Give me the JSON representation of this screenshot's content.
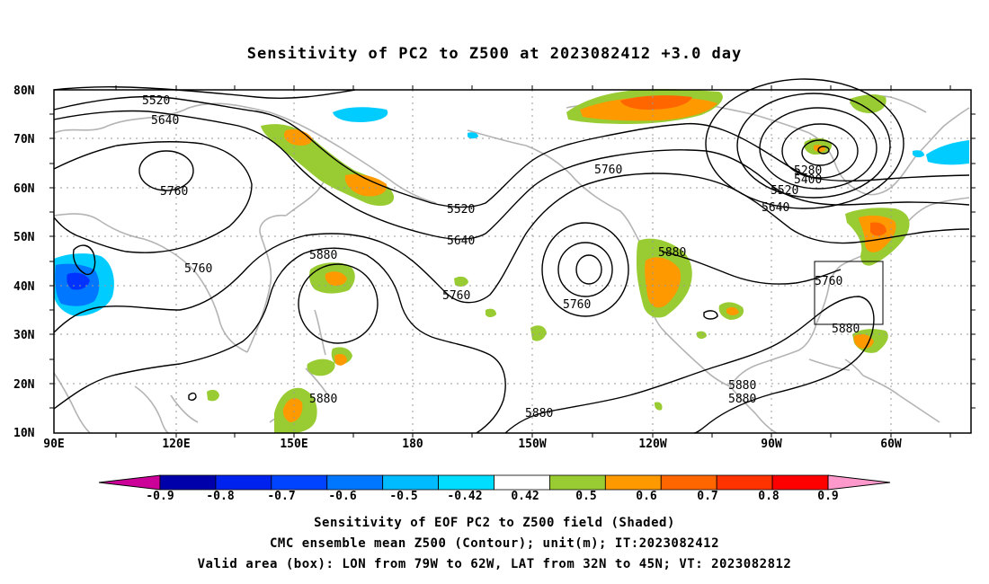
{
  "title": "Sensitivity of PC2 to Z500 at 2023082412 +3.0 day",
  "lat_labels": [
    "80N",
    "70N",
    "60N",
    "50N",
    "40N",
    "30N",
    "20N",
    "10N"
  ],
  "lon_labels": [
    "90E",
    "120E",
    "150E",
    "180",
    "150W",
    "120W",
    "90W",
    "60W"
  ],
  "contours": {
    "color": "#000000",
    "labels": [
      "5520",
      "5640",
      "5760",
      "5760",
      "5520",
      "5640",
      "5760",
      "5880",
      "5760",
      "5880",
      "5760",
      "5280",
      "5400",
      "5520",
      "5640",
      "5760",
      "5880",
      "5880",
      "5880",
      "5880",
      "5880"
    ]
  },
  "shading": {
    "colors": {
      "green": "#99cc33",
      "orange": "#ff9900",
      "dark_orange": "#ff6600",
      "light_blue": "#00ccff",
      "blue": "#0077ff",
      "dark_blue": "#0033ff"
    }
  },
  "box": {
    "lon": [
      -79,
      -62
    ],
    "lat": [
      32,
      45
    ]
  },
  "colorbar": {
    "colors": [
      "#cc0099",
      "#0000aa",
      "#0022ee",
      "#0044ff",
      "#0077ff",
      "#00bbff",
      "#00ddff",
      "#ffffff",
      "#99cc33",
      "#ff9900",
      "#ff6600",
      "#ff3300",
      "#ff0000",
      "#ff99cc"
    ],
    "labels": [
      "-0.9",
      "-0.8",
      "-0.7",
      "-0.6",
      "-0.5",
      "-0.42",
      "0.42",
      "0.5",
      "0.6",
      "0.7",
      "0.8",
      "0.9"
    ]
  },
  "footer": {
    "line1": "Sensitivity of EOF PC2 to Z500 field (Shaded)",
    "line2": "CMC ensemble mean Z500 (Contour); unit(m); IT:2023082412",
    "line3": "Valid area (box): LON from 79W to 62W, LAT from 32N to 45N; VT: 2023082812"
  }
}
